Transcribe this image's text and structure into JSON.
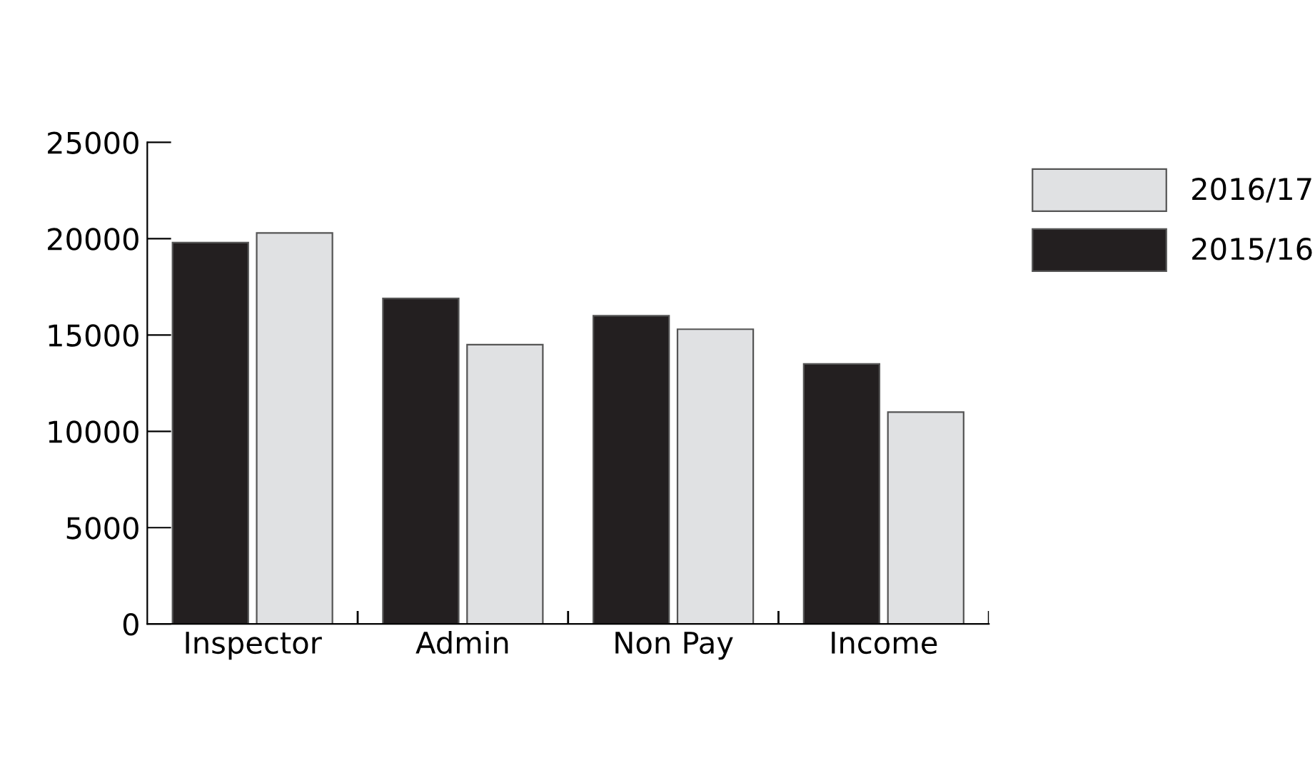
{
  "chart_data": {
    "type": "bar",
    "categories": [
      "Inspector",
      "Admin",
      "Non Pay",
      "Income"
    ],
    "series": [
      {
        "name": "2015/16",
        "color": "#231f20",
        "values": [
          19800,
          16900,
          16000,
          13500
        ]
      },
      {
        "name": "2016/17",
        "color": "#e0e1e3",
        "values": [
          20300,
          14500,
          15300,
          11000
        ]
      }
    ],
    "ylim": [
      0,
      25000
    ],
    "yticks": [
      0,
      5000,
      10000,
      15000,
      20000,
      25000
    ],
    "grid": false,
    "legend": "top right"
  }
}
